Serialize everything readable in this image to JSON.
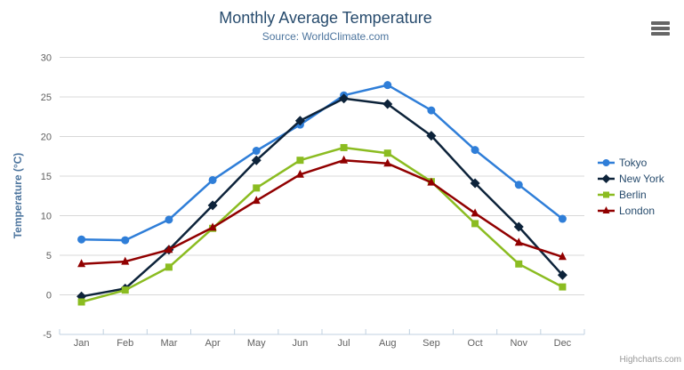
{
  "header": {
    "menu_icon": "hamburger-menu"
  },
  "chart_data": {
    "type": "line",
    "title": "Monthly Average Temperature",
    "subtitle": "Source: WorldClimate.com",
    "categories": [
      "Jan",
      "Feb",
      "Mar",
      "Apr",
      "May",
      "Jun",
      "Jul",
      "Aug",
      "Sep",
      "Oct",
      "Nov",
      "Dec"
    ],
    "xlabel": "",
    "ylabel": "Temperature (°C)",
    "ylim": [
      -5,
      30
    ],
    "y_tick_interval": 5,
    "y_ticks": [
      -5,
      0,
      5,
      10,
      15,
      20,
      25,
      30
    ],
    "grid": "horizontal",
    "legend_position": "right",
    "series": [
      {
        "name": "Tokyo",
        "color": "#2f7ed8",
        "marker": "circle",
        "values": [
          7.0,
          6.9,
          9.5,
          14.5,
          18.2,
          21.5,
          25.2,
          26.5,
          23.3,
          18.3,
          13.9,
          9.6
        ]
      },
      {
        "name": "New York",
        "color": "#0d233a",
        "marker": "diamond",
        "values": [
          -0.2,
          0.8,
          5.7,
          11.3,
          17.0,
          22.0,
          24.8,
          24.1,
          20.1,
          14.1,
          8.6,
          2.5
        ]
      },
      {
        "name": "Berlin",
        "color": "#8bbc21",
        "marker": "square",
        "values": [
          -0.9,
          0.6,
          3.5,
          8.4,
          13.5,
          17.0,
          18.6,
          17.9,
          14.3,
          9.0,
          3.9,
          1.0
        ]
      },
      {
        "name": "London",
        "color": "#910000",
        "marker": "triangle",
        "values": [
          3.9,
          4.2,
          5.7,
          8.5,
          11.9,
          15.2,
          17.0,
          16.6,
          14.2,
          10.3,
          6.6,
          4.8
        ]
      }
    ],
    "credit": "Highcharts.com",
    "colors": {
      "title": "#274b6d",
      "subtitle": "#4d759e",
      "axis_label": "#606060",
      "axis_title": "#4d759e",
      "gridline": "#d8d8d8",
      "axis_line": "#c0d0e0",
      "legend_text": "#274b6d",
      "credit": "#999999",
      "menu_icon": "#666666"
    }
  }
}
